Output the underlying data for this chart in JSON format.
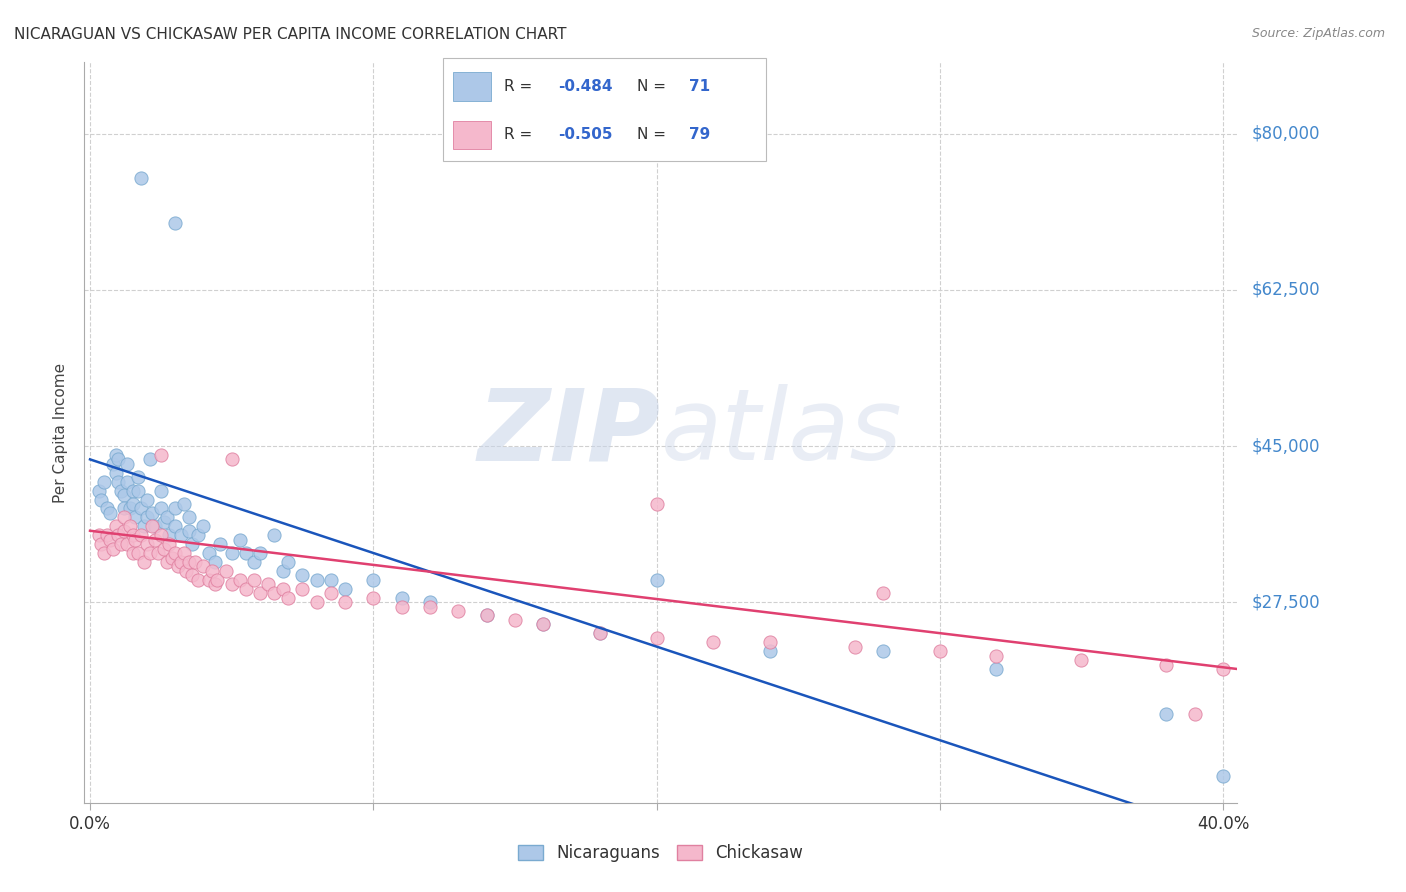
{
  "title": "NICARAGUAN VS CHICKASAW PER CAPITA INCOME CORRELATION CHART",
  "source": "Source: ZipAtlas.com",
  "ylabel": "Per Capita Income",
  "watermark_zip": "ZIP",
  "watermark_atlas": "atlas",
  "legend_entries": [
    {
      "label": "Nicaraguans",
      "R": -0.484,
      "N": 71,
      "face_color": "#adc8e8",
      "edge_color": "#7aaad0"
    },
    {
      "label": "Chickasaw",
      "R": -0.505,
      "N": 79,
      "face_color": "#f5b8cc",
      "edge_color": "#e080a0"
    }
  ],
  "ytick_vals": [
    27500,
    45000,
    62500,
    80000
  ],
  "ytick_labels": [
    "$27,500",
    "$45,000",
    "$62,500",
    "$80,000"
  ],
  "ymin": 5000,
  "ymax": 88000,
  "xmin": -0.002,
  "xmax": 0.405,
  "xtick_positions": [
    0.0,
    0.1,
    0.2,
    0.3,
    0.4
  ],
  "xtick_labels": [
    "0.0%",
    "",
    "",
    "",
    "40.0%"
  ],
  "grid_color": "#d0d0d0",
  "title_fontsize": 11,
  "tick_fontsize": 12,
  "ylabel_fontsize": 11,
  "blue_scatter_x": [
    0.003,
    0.004,
    0.005,
    0.006,
    0.007,
    0.008,
    0.009,
    0.009,
    0.01,
    0.01,
    0.011,
    0.012,
    0.012,
    0.013,
    0.013,
    0.014,
    0.015,
    0.015,
    0.016,
    0.017,
    0.017,
    0.018,
    0.019,
    0.02,
    0.02,
    0.021,
    0.022,
    0.023,
    0.025,
    0.025,
    0.026,
    0.027,
    0.028,
    0.03,
    0.03,
    0.032,
    0.033,
    0.035,
    0.035,
    0.036,
    0.038,
    0.04,
    0.042,
    0.044,
    0.046,
    0.05,
    0.053,
    0.055,
    0.058,
    0.06,
    0.065,
    0.068,
    0.07,
    0.075,
    0.08,
    0.085,
    0.09,
    0.1,
    0.11,
    0.12,
    0.14,
    0.16,
    0.18,
    0.2,
    0.24,
    0.28,
    0.32,
    0.38,
    0.4,
    0.018,
    0.03
  ],
  "blue_scatter_y": [
    40000,
    39000,
    41000,
    38000,
    37500,
    43000,
    44000,
    42000,
    43500,
    41000,
    40000,
    39500,
    38000,
    43000,
    41000,
    38000,
    40000,
    38500,
    37000,
    41500,
    40000,
    38000,
    36000,
    39000,
    37000,
    43500,
    37500,
    36000,
    40000,
    38000,
    36500,
    37000,
    35000,
    38000,
    36000,
    35000,
    38500,
    37000,
    35500,
    34000,
    35000,
    36000,
    33000,
    32000,
    34000,
    33000,
    34500,
    33000,
    32000,
    33000,
    35000,
    31000,
    32000,
    30500,
    30000,
    30000,
    29000,
    30000,
    28000,
    27500,
    26000,
    25000,
    24000,
    30000,
    22000,
    22000,
    20000,
    15000,
    8000,
    75000,
    70000
  ],
  "pink_scatter_x": [
    0.003,
    0.004,
    0.005,
    0.006,
    0.007,
    0.008,
    0.009,
    0.01,
    0.011,
    0.012,
    0.012,
    0.013,
    0.014,
    0.015,
    0.015,
    0.016,
    0.017,
    0.018,
    0.019,
    0.02,
    0.021,
    0.022,
    0.023,
    0.024,
    0.025,
    0.026,
    0.027,
    0.028,
    0.029,
    0.03,
    0.031,
    0.032,
    0.033,
    0.034,
    0.035,
    0.036,
    0.037,
    0.038,
    0.04,
    0.042,
    0.043,
    0.044,
    0.045,
    0.048,
    0.05,
    0.053,
    0.055,
    0.058,
    0.06,
    0.063,
    0.065,
    0.068,
    0.07,
    0.075,
    0.08,
    0.085,
    0.09,
    0.1,
    0.11,
    0.12,
    0.13,
    0.14,
    0.15,
    0.16,
    0.18,
    0.2,
    0.22,
    0.24,
    0.27,
    0.3,
    0.32,
    0.35,
    0.38,
    0.4,
    0.025,
    0.05,
    0.2,
    0.28,
    0.39
  ],
  "pink_scatter_y": [
    35000,
    34000,
    33000,
    35000,
    34500,
    33500,
    36000,
    35000,
    34000,
    37000,
    35500,
    34000,
    36000,
    35000,
    33000,
    34500,
    33000,
    35000,
    32000,
    34000,
    33000,
    36000,
    34500,
    33000,
    35000,
    33500,
    32000,
    34000,
    32500,
    33000,
    31500,
    32000,
    33000,
    31000,
    32000,
    30500,
    32000,
    30000,
    31500,
    30000,
    31000,
    29500,
    30000,
    31000,
    29500,
    30000,
    29000,
    30000,
    28500,
    29500,
    28500,
    29000,
    28000,
    29000,
    27500,
    28500,
    27500,
    28000,
    27000,
    27000,
    26500,
    26000,
    25500,
    25000,
    24000,
    23500,
    23000,
    23000,
    22500,
    22000,
    21500,
    21000,
    20500,
    20000,
    44000,
    43500,
    38500,
    28500,
    15000
  ],
  "blue_line_x": [
    0.0,
    0.405
  ],
  "blue_line_y": [
    43500,
    1000
  ],
  "pink_line_x": [
    0.0,
    0.405
  ],
  "pink_line_y": [
    35500,
    20000
  ],
  "background_color": "#ffffff"
}
